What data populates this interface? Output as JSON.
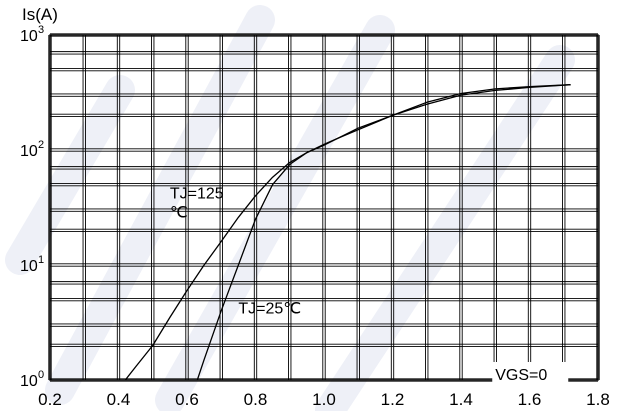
{
  "chart_data": {
    "type": "line",
    "ylabel": "Is(A)",
    "xlabel": "",
    "x_ticks": [
      "0.2",
      "0.4",
      "0.6",
      "0.8",
      "1.0",
      "1.2",
      "1.4",
      "1.6",
      "1.8"
    ],
    "y_ticks": [
      {
        "base": "10",
        "exp": "0"
      },
      {
        "base": "10",
        "exp": "1"
      },
      {
        "base": "10",
        "exp": "2"
      },
      {
        "base": "10",
        "exp": "3"
      }
    ],
    "xlim": [
      0.2,
      1.8
    ],
    "ylim": [
      1,
      1000
    ],
    "yscale": "log",
    "grid": true,
    "series": [
      {
        "name": "TJ=125℃",
        "x": [
          0.42,
          0.45,
          0.5,
          0.55,
          0.6,
          0.65,
          0.7,
          0.75,
          0.8,
          0.85,
          0.9,
          0.95,
          1.0,
          1.1,
          1.2,
          1.3,
          1.4,
          1.5,
          1.6,
          1.72
        ],
        "y": [
          1.0,
          1.3,
          2.0,
          3.5,
          6.0,
          10,
          16,
          26,
          40,
          58,
          78,
          95,
          110,
          155,
          200,
          250,
          300,
          330,
          350,
          370
        ]
      },
      {
        "name": "TJ=25℃",
        "x": [
          0.63,
          0.65,
          0.7,
          0.75,
          0.8,
          0.85,
          0.9,
          0.95,
          1.0,
          1.05,
          1.1,
          1.2,
          1.3,
          1.4,
          1.5,
          1.6,
          1.72
        ],
        "y": [
          1.0,
          1.5,
          4.0,
          10,
          25,
          50,
          75,
          95,
          112,
          130,
          150,
          200,
          260,
          310,
          340,
          355,
          370
        ]
      }
    ],
    "annotations": [
      {
        "text": "TJ=125",
        "x": 0.55,
        "y": 38
      },
      {
        "text": "℃",
        "x": 0.55,
        "y": 26
      },
      {
        "text": "TJ=25℃",
        "x": 0.75,
        "y": 3.8
      },
      {
        "text": "VGS=0",
        "x": 1.5,
        "y": 1.0
      }
    ]
  }
}
